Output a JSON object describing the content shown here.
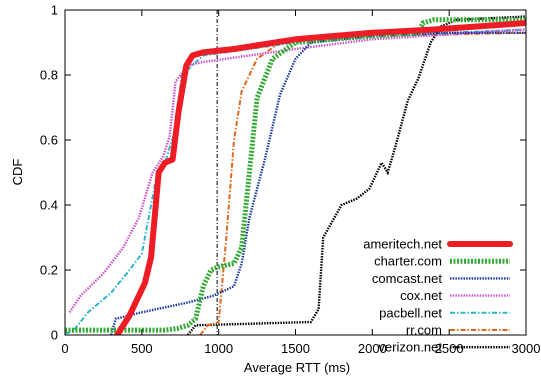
{
  "chart_data": {
    "type": "line",
    "title": "",
    "xlabel": "Average RTT (ms)",
    "ylabel": "CDF",
    "xlim": [
      0,
      3000
    ],
    "ylim": [
      0,
      1
    ],
    "x_ticks": [
      "0",
      "500",
      "1000",
      "1500",
      "2000",
      "2500",
      "3000"
    ],
    "y_ticks": [
      "0",
      "0.2",
      "0.4",
      "0.6",
      "0.8",
      "1"
    ],
    "grid": false,
    "legend_position": "bottom-right",
    "reference_line_x": 990,
    "series": [
      {
        "name": "ameritech.net",
        "color": "#ee1c25",
        "style": "solid-thick",
        "points": [
          [
            340,
            0
          ],
          [
            420,
            0.06
          ],
          [
            520,
            0.16
          ],
          [
            560,
            0.24
          ],
          [
            610,
            0.5
          ],
          [
            650,
            0.53
          ],
          [
            700,
            0.54
          ],
          [
            740,
            0.69
          ],
          [
            790,
            0.83
          ],
          [
            830,
            0.86
          ],
          [
            900,
            0.87
          ],
          [
            1100,
            0.88
          ],
          [
            1500,
            0.91
          ],
          [
            2000,
            0.93
          ],
          [
            2400,
            0.94
          ],
          [
            3000,
            0.96
          ]
        ]
      },
      {
        "name": "charter.com",
        "color": "#33aa33",
        "style": "dotted-thick",
        "points": [
          [
            0,
            0.015
          ],
          [
            650,
            0.015
          ],
          [
            730,
            0.02
          ],
          [
            800,
            0.03
          ],
          [
            850,
            0.05
          ],
          [
            900,
            0.15
          ],
          [
            950,
            0.2
          ],
          [
            1000,
            0.21
          ],
          [
            1100,
            0.22
          ],
          [
            1150,
            0.27
          ],
          [
            1200,
            0.5
          ],
          [
            1250,
            0.73
          ],
          [
            1350,
            0.85
          ],
          [
            1500,
            0.9
          ],
          [
            2000,
            0.92
          ],
          [
            2300,
            0.93
          ],
          [
            2330,
            0.96
          ],
          [
            2400,
            0.97
          ],
          [
            3000,
            0.97
          ]
        ]
      },
      {
        "name": "comcast.net",
        "color": "#1a3a9e",
        "style": "dotted",
        "points": [
          [
            300,
            0
          ],
          [
            330,
            0.05
          ],
          [
            500,
            0.07
          ],
          [
            800,
            0.1
          ],
          [
            960,
            0.12
          ],
          [
            1100,
            0.15
          ],
          [
            1150,
            0.22
          ],
          [
            1200,
            0.36
          ],
          [
            1250,
            0.45
          ],
          [
            1300,
            0.54
          ],
          [
            1400,
            0.74
          ],
          [
            1500,
            0.85
          ],
          [
            1600,
            0.9
          ],
          [
            2000,
            0.92
          ],
          [
            2500,
            0.93
          ],
          [
            3000,
            0.93
          ]
        ]
      },
      {
        "name": "cox.net",
        "color": "#cc55cc",
        "style": "dotted",
        "points": [
          [
            30,
            0.07
          ],
          [
            100,
            0.12
          ],
          [
            250,
            0.19
          ],
          [
            380,
            0.27
          ],
          [
            480,
            0.36
          ],
          [
            570,
            0.5
          ],
          [
            640,
            0.55
          ],
          [
            680,
            0.61
          ],
          [
            720,
            0.78
          ],
          [
            800,
            0.83
          ],
          [
            900,
            0.84
          ],
          [
            1500,
            0.88
          ],
          [
            2000,
            0.91
          ],
          [
            3000,
            0.94
          ]
        ]
      },
      {
        "name": "pacbell.net",
        "color": "#2ab5c8",
        "style": "dash-dot",
        "points": [
          [
            0,
            0.005
          ],
          [
            50,
            0.01
          ],
          [
            150,
            0.07
          ],
          [
            300,
            0.13
          ],
          [
            420,
            0.2
          ],
          [
            500,
            0.25
          ],
          [
            560,
            0.4
          ],
          [
            600,
            0.5
          ],
          [
            650,
            0.53
          ],
          [
            710,
            0.62
          ],
          [
            760,
            0.8
          ],
          [
            900,
            0.86
          ],
          [
            1200,
            0.88
          ],
          [
            1500,
            0.9
          ],
          [
            2000,
            0.92
          ],
          [
            3000,
            0.94
          ]
        ]
      },
      {
        "name": "rr.com",
        "color": "#e0661a",
        "style": "dash-dot",
        "points": [
          [
            880,
            0
          ],
          [
            930,
            0.03
          ],
          [
            1000,
            0.04
          ],
          [
            1050,
            0.3
          ],
          [
            1100,
            0.6
          ],
          [
            1150,
            0.75
          ],
          [
            1250,
            0.85
          ],
          [
            1400,
            0.9
          ],
          [
            2000,
            0.92
          ],
          [
            3000,
            0.93
          ]
        ]
      },
      {
        "name": "verizon.net",
        "color": "#000000",
        "style": "dotted",
        "points": [
          [
            800,
            0
          ],
          [
            850,
            0.03
          ],
          [
            1600,
            0.04
          ],
          [
            1650,
            0.08
          ],
          [
            1680,
            0.3
          ],
          [
            1800,
            0.4
          ],
          [
            1900,
            0.42
          ],
          [
            1980,
            0.45
          ],
          [
            2060,
            0.53
          ],
          [
            2100,
            0.5
          ],
          [
            2150,
            0.58
          ],
          [
            2230,
            0.72
          ],
          [
            2300,
            0.79
          ],
          [
            2380,
            0.9
          ],
          [
            2450,
            0.95
          ],
          [
            2550,
            0.97
          ],
          [
            3000,
            0.98
          ]
        ]
      }
    ]
  }
}
